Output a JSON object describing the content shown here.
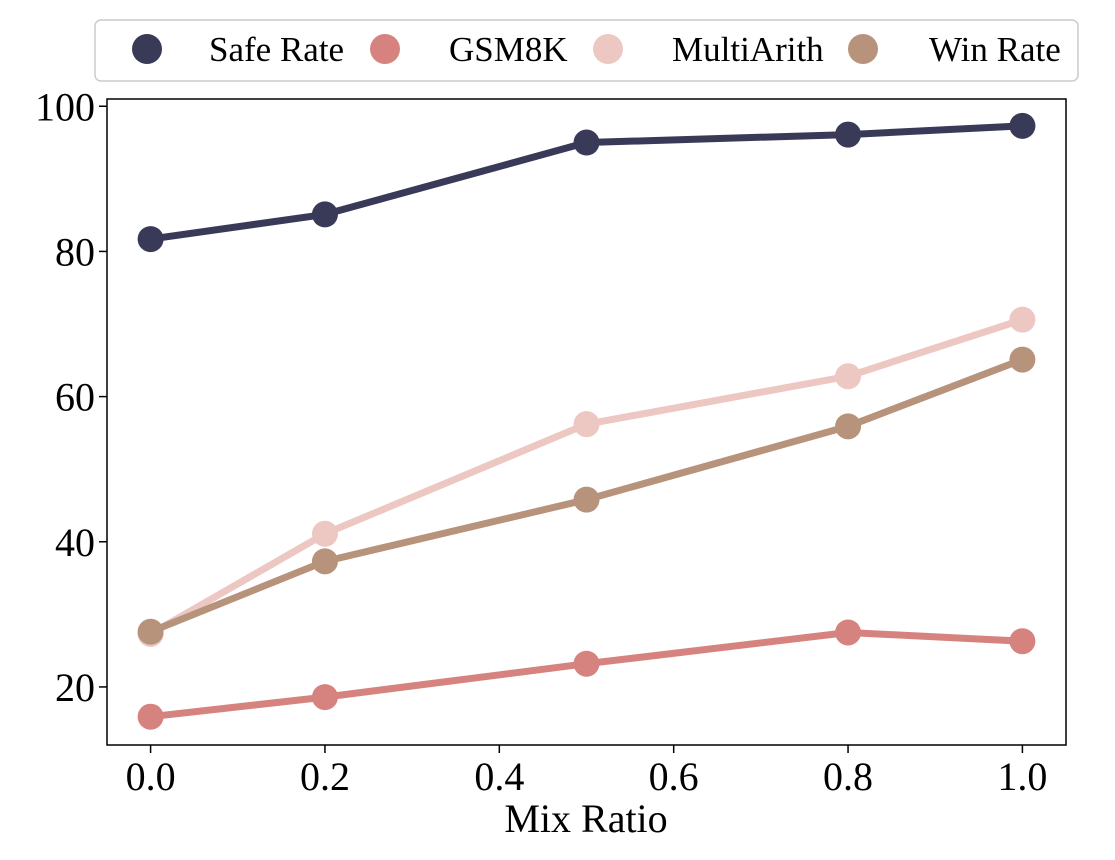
{
  "chart_data": {
    "type": "line",
    "title": "",
    "xlabel": "Mix Ratio",
    "ylabel": "",
    "x": [
      0.0,
      0.2,
      0.5,
      0.8,
      1.0
    ],
    "xlim": [
      -0.05,
      1.05
    ],
    "ylim": [
      12,
      101
    ],
    "xticks": [
      0.0,
      0.2,
      0.4,
      0.6,
      0.8,
      1.0
    ],
    "xtick_labels": [
      "0.0",
      "0.2",
      "0.4",
      "0.6",
      "0.8",
      "1.0"
    ],
    "yticks": [
      20,
      40,
      60,
      80,
      100
    ],
    "ytick_labels": [
      "20",
      "40",
      "60",
      "80",
      "100"
    ],
    "grid": false,
    "legend_position": "top, above plot",
    "series": [
      {
        "name": "Safe Rate",
        "color": "#383a57",
        "values": [
          81.7,
          85.1,
          95.0,
          96.1,
          97.3
        ]
      },
      {
        "name": "GSM8K",
        "color": "#d6837f",
        "values": [
          15.9,
          18.6,
          23.2,
          27.5,
          26.3
        ]
      },
      {
        "name": "MultiArith",
        "color": "#edc7c2",
        "values": [
          27.3,
          41.1,
          56.2,
          62.8,
          70.6
        ]
      },
      {
        "name": "Win Rate",
        "color": "#b8937c",
        "values": [
          27.6,
          37.3,
          45.8,
          55.9,
          65.1
        ]
      }
    ]
  }
}
